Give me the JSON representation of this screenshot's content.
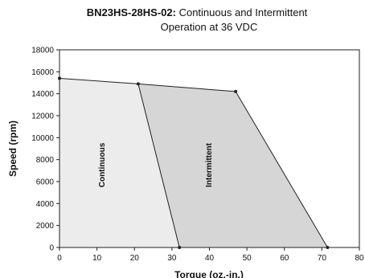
{
  "chart_data": {
    "type": "area",
    "title_bold": "BN23HS-28HS-02:",
    "title_rest": " Continuous and Intermittent",
    "title_line2": "Operation at 36 VDC",
    "xlabel": "Torque (oz.-in.)",
    "ylabel": "Speed (rpm)",
    "xlim": [
      0,
      80
    ],
    "ylim": [
      0,
      18000
    ],
    "x_ticks": [
      0,
      10,
      20,
      30,
      40,
      50,
      60,
      70,
      80
    ],
    "y_ticks": [
      0,
      2000,
      4000,
      6000,
      8000,
      10000,
      12000,
      14000,
      16000,
      18000
    ],
    "grid": false,
    "regions": [
      {
        "name": "Continuous",
        "fill": "#ececec",
        "points": [
          [
            0,
            0
          ],
          [
            0,
            15400
          ],
          [
            21,
            14900
          ],
          [
            32,
            0
          ]
        ]
      },
      {
        "name": "Intermittent",
        "fill": "#d6d6d6",
        "points": [
          [
            21,
            14900
          ],
          [
            47,
            14200
          ],
          [
            71.5,
            0
          ],
          [
            32,
            0
          ]
        ]
      }
    ],
    "outline_points": [
      [
        0,
        15400
      ],
      [
        21,
        14900
      ],
      [
        47,
        14200
      ],
      [
        71.5,
        0
      ]
    ],
    "continuous_boundary": [
      [
        21,
        14900
      ],
      [
        32,
        0
      ]
    ],
    "markers": [
      [
        0,
        15400
      ],
      [
        21,
        14900
      ],
      [
        47,
        14200
      ],
      [
        32,
        0
      ],
      [
        71.5,
        0
      ]
    ],
    "region_labels": [
      {
        "text": "Continuous",
        "x": 12,
        "y": 7500
      },
      {
        "text": "Intermittent",
        "x": 40.5,
        "y": 7500
      }
    ]
  }
}
